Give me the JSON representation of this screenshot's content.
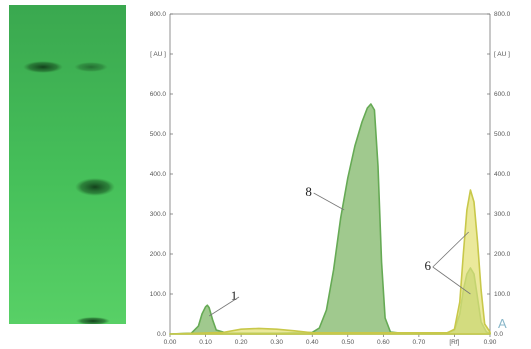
{
  "chart_data": {
    "type": "area",
    "x_ticks": [
      "0.00",
      "0.10",
      "0.20",
      "0.30",
      "0.40",
      "0.50",
      "0.60",
      "0.70",
      "[Rf]",
      "0.90"
    ],
    "y_ticks_left": [
      "0.0",
      "100.0",
      "200.0",
      "300.0",
      "400.0",
      "500.0",
      "600.0",
      "[ AU ]",
      "800.0"
    ],
    "y_ticks_right": [
      "0.0",
      "100.0",
      "200.0",
      "300.0",
      "400.0",
      "500.0",
      "600.0",
      "[ AU ]",
      "800.0"
    ],
    "xlim": [
      0.0,
      0.9
    ],
    "ylim": [
      0,
      800
    ],
    "grid": false,
    "series": [
      {
        "color": "#66aa55",
        "fill": "#8fbf7a",
        "x": [
          0.0,
          0.06,
          0.08,
          0.09,
          0.1,
          0.105,
          0.11,
          0.12,
          0.13,
          0.16,
          0.3,
          0.4,
          0.42,
          0.44,
          0.46,
          0.48,
          0.5,
          0.52,
          0.54,
          0.555,
          0.565,
          0.575,
          0.585,
          0.595,
          0.605,
          0.62,
          0.65,
          0.75,
          0.78,
          0.8,
          0.815,
          0.825,
          0.835,
          0.845,
          0.855,
          0.865,
          0.875,
          0.89,
          0.9
        ],
        "y": [
          0,
          2,
          20,
          50,
          68,
          72,
          66,
          35,
          10,
          2,
          2,
          4,
          15,
          60,
          160,
          290,
          390,
          470,
          530,
          565,
          575,
          560,
          420,
          180,
          40,
          5,
          2,
          2,
          3,
          10,
          50,
          110,
          150,
          165,
          150,
          90,
          30,
          5,
          2
        ]
      },
      {
        "color": "#c8c84a",
        "fill": "#e4e27a",
        "x": [
          0.0,
          0.15,
          0.2,
          0.25,
          0.3,
          0.35,
          0.4,
          0.78,
          0.8,
          0.815,
          0.825,
          0.835,
          0.845,
          0.855,
          0.865,
          0.875,
          0.885,
          0.9
        ],
        "y": [
          0,
          4,
          12,
          14,
          12,
          8,
          3,
          3,
          12,
          80,
          200,
          310,
          360,
          330,
          230,
          110,
          25,
          5
        ]
      }
    ],
    "annotations": [
      {
        "text": "1",
        "x": 0.18,
        "y": 85,
        "point_to": [
          0.11,
          45
        ]
      },
      {
        "text": "8",
        "x": 0.39,
        "y": 345,
        "point_to": [
          0.49,
          310
        ]
      },
      {
        "text": "6",
        "x": 0.725,
        "y": 160,
        "point_to": [
          [
            0.84,
            255
          ],
          [
            0.845,
            100
          ]
        ]
      }
    ],
    "corner_mark": "A"
  }
}
